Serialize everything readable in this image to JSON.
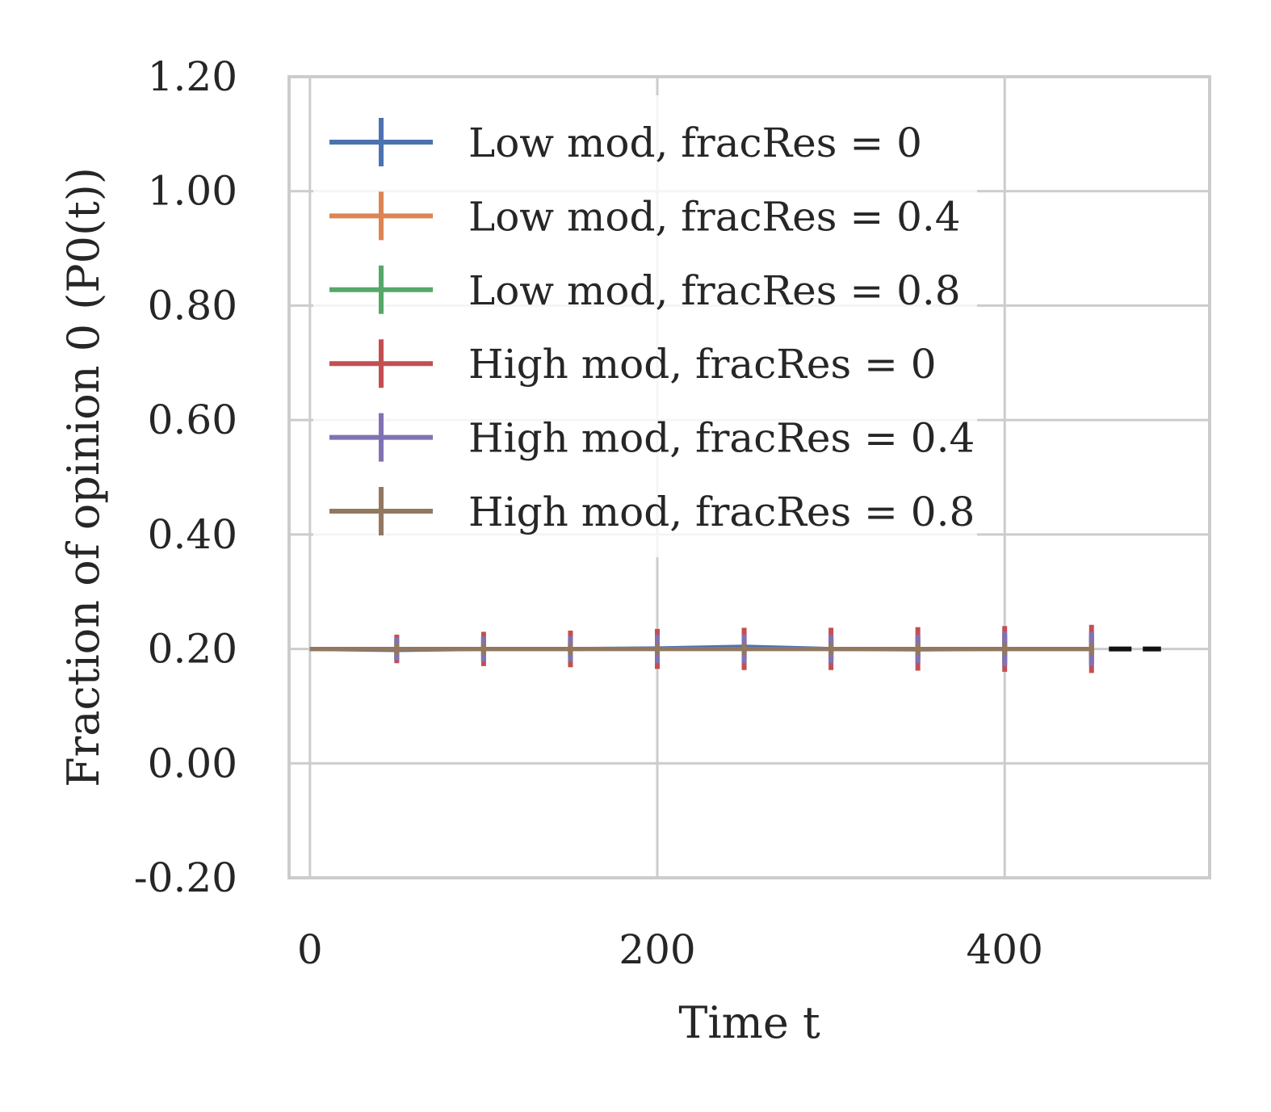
{
  "chart_data": {
    "type": "line",
    "xlabel": "Time t",
    "ylabel": "Fraction of opinion 0 (P0(t))",
    "xlim": [
      -12,
      518
    ],
    "ylim": [
      -0.2,
      1.2
    ],
    "xticks": [
      0,
      200,
      400
    ],
    "xtick_labels": [
      "0",
      "200",
      "400"
    ],
    "yticks": [
      -0.2,
      0.0,
      0.2,
      0.4,
      0.6,
      0.8,
      1.0,
      1.2
    ],
    "ytick_labels": [
      "-0.20",
      "0.00",
      "0.20",
      "0.40",
      "0.60",
      "0.80",
      "1.00",
      "1.20"
    ],
    "grid": true,
    "legend_position": "top-left",
    "x": [
      0,
      50,
      100,
      150,
      200,
      250,
      300,
      350,
      400,
      450
    ],
    "series": [
      {
        "name": "Low mod, fracRes = 0",
        "color": "#4c72b0",
        "values": [
          0.2,
          0.198,
          0.2,
          0.2,
          0.201,
          0.204,
          0.2,
          0.199,
          0.2,
          0.2
        ],
        "errors": [
          0,
          0.02,
          0.022,
          0.02,
          0.022,
          0.025,
          0.022,
          0.022,
          0.025,
          0.025
        ]
      },
      {
        "name": "Low mod, fracRes = 0.4",
        "color": "#dd8452",
        "values": [
          0.2,
          0.2,
          0.2,
          0.2,
          0.2,
          0.2,
          0.2,
          0.2,
          0.2,
          0.2
        ],
        "errors": [
          0,
          0.02,
          0.02,
          0.02,
          0.02,
          0.02,
          0.022,
          0.022,
          0.025,
          0.025
        ]
      },
      {
        "name": "Low mod, fracRes = 0.8",
        "color": "#55a868",
        "values": [
          0.2,
          0.2,
          0.2,
          0.2,
          0.2,
          0.2,
          0.2,
          0.2,
          0.2,
          0.2
        ],
        "errors": [
          0,
          0.015,
          0.015,
          0.015,
          0.015,
          0.015,
          0.015,
          0.015,
          0.015,
          0.015
        ]
      },
      {
        "name": "High mod, fracRes = 0",
        "color": "#c44e52",
        "values": [
          0.2,
          0.2,
          0.2,
          0.2,
          0.2,
          0.2,
          0.2,
          0.2,
          0.2,
          0.2
        ],
        "errors": [
          0,
          0.025,
          0.03,
          0.032,
          0.035,
          0.037,
          0.037,
          0.038,
          0.04,
          0.042
        ]
      },
      {
        "name": "High mod, fracRes = 0.4",
        "color": "#8172b3",
        "values": [
          0.2,
          0.2,
          0.2,
          0.2,
          0.2,
          0.2,
          0.2,
          0.2,
          0.2,
          0.2
        ],
        "errors": [
          0,
          0.02,
          0.022,
          0.022,
          0.025,
          0.025,
          0.025,
          0.025,
          0.03,
          0.03
        ]
      },
      {
        "name": "High mod, fracRes = 0.8",
        "color": "#937860",
        "values": [
          0.2,
          0.2,
          0.2,
          0.2,
          0.2,
          0.2,
          0.2,
          0.2,
          0.2,
          0.2
        ],
        "errors": [
          0,
          0.01,
          0.01,
          0.01,
          0.01,
          0.01,
          0.01,
          0.01,
          0.01,
          0.01
        ]
      }
    ],
    "reference_line": {
      "y": 0.2,
      "x_range": [
        460,
        490
      ],
      "style": "dashed",
      "color": "#111111"
    }
  }
}
